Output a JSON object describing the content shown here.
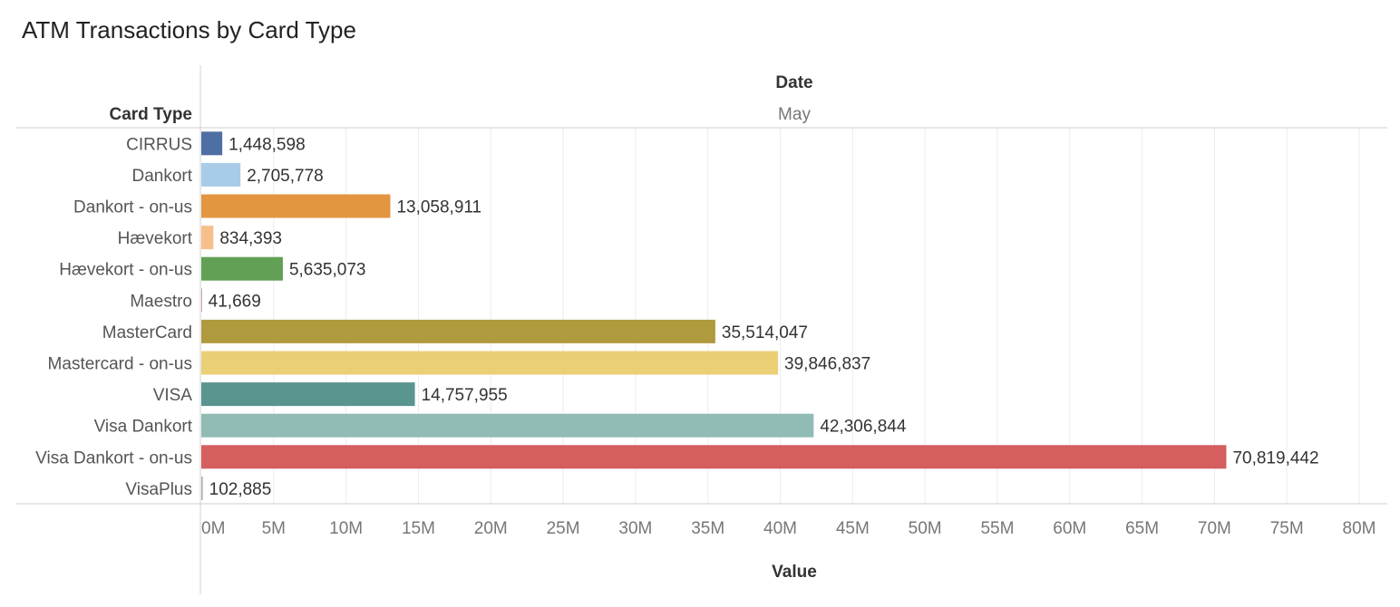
{
  "chart_data": {
    "type": "bar",
    "title": "ATM Transactions by Card Type",
    "row_header": "Card Type",
    "column_header": "Date",
    "column_value": "May",
    "xlabel": "Value",
    "xlim": [
      0,
      80000000
    ],
    "tick_step": 5000000,
    "tick_labels": [
      "0M",
      "5M",
      "10M",
      "15M",
      "20M",
      "25M",
      "30M",
      "35M",
      "40M",
      "45M",
      "50M",
      "55M",
      "60M",
      "65M",
      "70M",
      "75M",
      "80M"
    ],
    "grid": true,
    "categories": [
      "CIRRUS",
      "Dankort",
      "Dankort - on-us",
      "Hævekort",
      "Hævekort - on-us",
      "Maestro",
      "MasterCard",
      "Mastercard - on-us",
      "VISA",
      "Visa Dankort",
      "Visa Dankort - on-us",
      "VisaPlus"
    ],
    "values": [
      1448598,
      2705778,
      13058911,
      834393,
      5635073,
      41669,
      35514047,
      39846837,
      14757955,
      42306844,
      70819442,
      102885
    ],
    "value_labels": [
      "1,448,598",
      "2,705,778",
      "13,058,911",
      "834,393",
      "5,635,073",
      "41,669",
      "35,514,047",
      "39,846,837",
      "14,757,955",
      "42,306,844",
      "70,819,442",
      "102,885"
    ],
    "colors": [
      "#4e6fa3",
      "#a8cbe8",
      "#e4953f",
      "#f7c08a",
      "#62a055",
      "#b07aa1",
      "#b09a3e",
      "#ebcf75",
      "#5a958f",
      "#91bcb6",
      "#d45f5e",
      "#b0b0b0"
    ]
  }
}
